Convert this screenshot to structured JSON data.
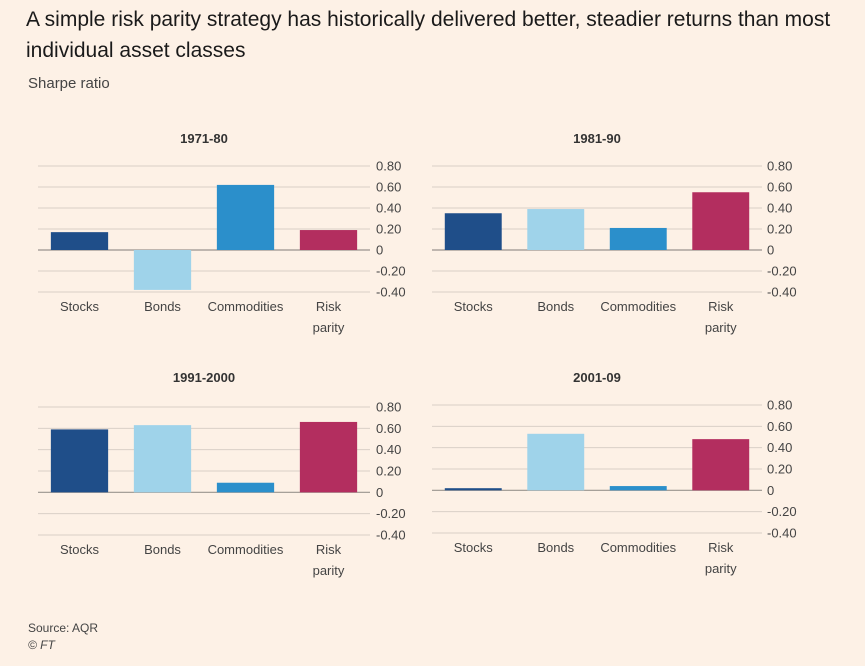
{
  "title": "A simple risk parity strategy has historically delivered better, steadier returns than most individual asset classes",
  "subtitle": "Sharpe ratio",
  "source": "Source: AQR",
  "credit": "© FT",
  "colors": {
    "Stocks": "#1f4e89",
    "Bonds": "#9fd3ea",
    "Commodities": "#2b8fcb",
    "Risk parity": "#b32e5f",
    "grid": "#d9d0c7",
    "zero": "#9a948e"
  },
  "chart_data": [
    {
      "type": "bar",
      "title": "1971-80",
      "categories": [
        "Stocks",
        "Bonds",
        "Commodities",
        "Risk parity"
      ],
      "values": [
        0.17,
        -0.38,
        0.62,
        0.19
      ],
      "ylim": [
        -0.4,
        0.8
      ],
      "yticks": [
        "0.80",
        "0.60",
        "0.40",
        "0.20",
        "0",
        "-0.20",
        "-0.40"
      ],
      "ylabel": "Sharpe ratio"
    },
    {
      "type": "bar",
      "title": "1981-90",
      "categories": [
        "Stocks",
        "Bonds",
        "Commodities",
        "Risk parity"
      ],
      "values": [
        0.35,
        0.39,
        0.21,
        0.55
      ],
      "ylim": [
        -0.4,
        0.8
      ],
      "yticks": [
        "0.80",
        "0.60",
        "0.40",
        "0.20",
        "0",
        "-0.20",
        "-0.40"
      ],
      "ylabel": "Sharpe ratio"
    },
    {
      "type": "bar",
      "title": "1991-2000",
      "categories": [
        "Stocks",
        "Bonds",
        "Commodities",
        "Risk parity"
      ],
      "values": [
        0.59,
        0.63,
        0.09,
        0.66
      ],
      "ylim": [
        -0.4,
        0.8
      ],
      "yticks": [
        "0.80",
        "0.60",
        "0.40",
        "0.20",
        "0",
        "-0.20",
        "-0.40"
      ],
      "ylabel": "Sharpe ratio"
    },
    {
      "type": "bar",
      "title": "2001-09",
      "categories": [
        "Stocks",
        "Bonds",
        "Commodities",
        "Risk parity"
      ],
      "values": [
        0.02,
        0.53,
        0.04,
        0.48
      ],
      "ylim": [
        -0.4,
        0.8
      ],
      "yticks": [
        "0.80",
        "0.60",
        "0.40",
        "0.20",
        "0",
        "-0.20",
        "-0.40"
      ],
      "ylabel": "Sharpe ratio"
    }
  ]
}
